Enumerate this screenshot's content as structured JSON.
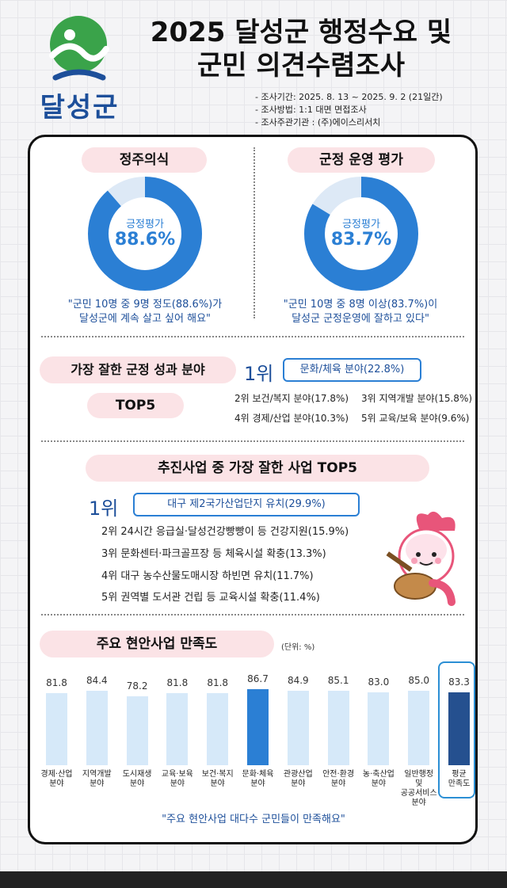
{
  "header": {
    "logo_text": "달성군",
    "title_line1": "2025 달성군 행정수요 및",
    "title_line2": "군민 의견수렴조사",
    "meta": [
      "- 조사기간: 2025. 8. 13 ~ 2025. 9. 2 (21일간)",
      "- 조사방법: 1:1 대면 면접조사",
      "- 조사주관기관 : (주)에이스리서치"
    ]
  },
  "colors": {
    "primary": "#2b7fd4",
    "accent": "#1d4f9a",
    "avg_bar": "#25508f",
    "light_bar": "#d6e9f9",
    "pill": "#fbe3e6"
  },
  "settlement": {
    "title": "정주의식",
    "center_label": "긍정평가",
    "percent": 88.6,
    "percent_text": "88.6%",
    "quote_line1": "\"군민 10명 중 9명 정도(88.6%)가",
    "quote_line2": "달성군에 계속 살고 싶어 해요\""
  },
  "administration": {
    "title": "군정 운영 평가",
    "center_label": "긍정평가",
    "percent": 83.7,
    "percent_text": "83.7%",
    "quote_line1": "\"군민 10명 중 8명 이상(83.7%)이",
    "quote_line2": "달성군 군정운영에 잘하고 있다\""
  },
  "best_field": {
    "title": "가장 잘한 군정 성과 분야",
    "subtitle": "TOP5",
    "rank1_label": "1위",
    "rank1_text": "문화/체육 분야(22.8%)",
    "others": [
      "2위 보건/복지 분야(17.8%)",
      "3위 지역개발 분야(15.8%)",
      "4위 경제/산업 분야(10.3%)",
      "5위 교육/보육 분야(9.6%)"
    ]
  },
  "best_project": {
    "title": "추진사업 중 가장 잘한 사업 TOP5",
    "rank1_label": "1위",
    "rank1_text": "대구 제2국가산업단지 유치(29.9%)",
    "others": [
      "2위  24시간 응급실·달성건강빵빵이 등 건강지원(15.9%)",
      "3위  문화센터·파크골프장 등  체육시설 확충(13.3%)",
      "4위 대구 농수산물도매시장 하빈면 유치(11.7%)",
      "5위 권역별 도서관 건립 등 교육시설 확충(11.4%)"
    ]
  },
  "satisfaction": {
    "title": "주요 현안사업 만족도",
    "unit": "(단위: %)",
    "quote": "\"주요 현안사업 대다수 군민들이 만족해요\""
  },
  "chart_data": {
    "type": "bar",
    "categories": [
      "경제·산업 분야",
      "지역개발 분야",
      "도시재생 분야",
      "교육·보육 분야",
      "보건·복지 분야",
      "문화·체육 분야",
      "관광산업 분야",
      "안전·환경 분야",
      "농·축산업 분야",
      "일반행정 및 공공서비스 분야",
      "평균 만족도"
    ],
    "values": [
      81.8,
      84.4,
      78.2,
      81.8,
      81.8,
      86.7,
      84.9,
      85.1,
      83.0,
      85.0,
      83.3
    ],
    "value_labels": [
      "81.8",
      "84.4",
      "78.2",
      "81.8",
      "81.8",
      "86.7",
      "84.9",
      "85.1",
      "83.0",
      "85.0",
      "83.3"
    ],
    "label_lines": [
      [
        "경제·산업",
        "분야"
      ],
      [
        "지역개발",
        "분야"
      ],
      [
        "도시재생",
        "분야"
      ],
      [
        "교육·보육",
        "분야"
      ],
      [
        "보건·복지",
        "분야"
      ],
      [
        "문화·체육",
        "분야"
      ],
      [
        "관광산업",
        "분야"
      ],
      [
        "안전·환경",
        "분야"
      ],
      [
        "농·축산업",
        "분야"
      ],
      [
        "일반행정",
        "및",
        "공공서비스",
        "분야"
      ],
      [
        "평균",
        "만족도"
      ]
    ],
    "highlight_index": 5,
    "average_index": 10,
    "unit": "%"
  }
}
